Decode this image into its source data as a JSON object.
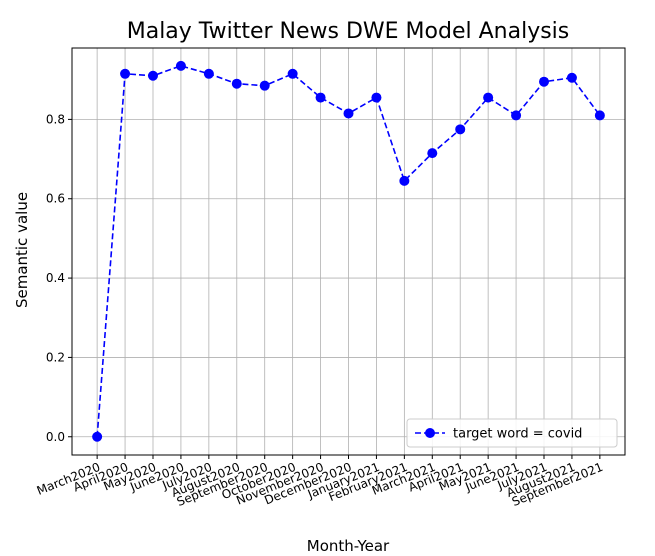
{
  "chart_data": {
    "type": "line",
    "title": "Malay Twitter News DWE Model Analysis",
    "xlabel": "Month-Year",
    "ylabel": "Semantic value",
    "categories": [
      "March2020",
      "April2020",
      "May2020",
      "June2020",
      "July2020",
      "August2020",
      "September2020",
      "October2020",
      "November2020",
      "December2020",
      "January2021",
      "February2021",
      "March2021",
      "April2021",
      "May2021",
      "June2021",
      "July2021",
      "August2021",
      "September2021"
    ],
    "series": [
      {
        "name": "target word = covid",
        "color": "#0000ff",
        "values": [
          0.0,
          0.915,
          0.91,
          0.935,
          0.915,
          0.89,
          0.885,
          0.915,
          0.855,
          0.815,
          0.855,
          0.645,
          0.715,
          0.775,
          0.855,
          0.81,
          0.895,
          0.905,
          0.81
        ]
      }
    ],
    "ylim": [
      -0.046,
      0.98
    ],
    "yticks": [
      {
        "value": 0,
        "label": "0.0"
      },
      0.2,
      0.4,
      0.6,
      0.8
    ],
    "grid": true,
    "legend": "lower right"
  }
}
